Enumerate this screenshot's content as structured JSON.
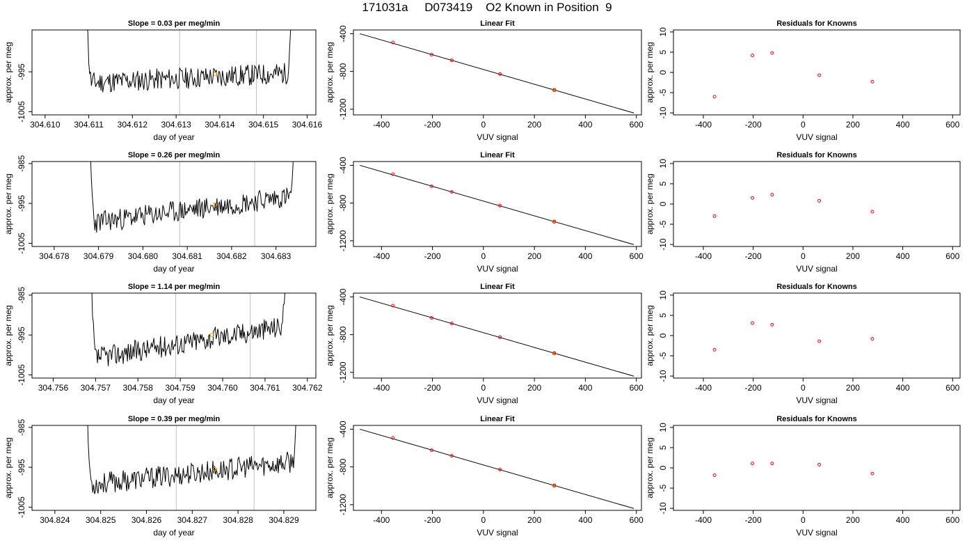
{
  "figure_title": "171031a     D073419    O2 Known in Position  9",
  "colors": {
    "line": "#000000",
    "vline": "#bebebe",
    "orange_point": "#ffa500",
    "red_point": "#ff0000"
  },
  "chart_data": [
    {
      "type": "line",
      "row": 0,
      "title": "Slope =  0.03  per meg/min",
      "xlabel": "day of year",
      "ylabel": "approx. per meg",
      "xlim": [
        304.6097,
        304.6162
      ],
      "ylim": [
        -1005.8,
        -984.5
      ],
      "xticks": [
        "304.610",
        "304.611",
        "304.612",
        "304.613",
        "304.614",
        "304.615",
        "304.616"
      ],
      "xtick_values": [
        304.61,
        304.611,
        304.612,
        304.613,
        304.614,
        304.615,
        304.616
      ],
      "yticks": [
        "-1005",
        "-995"
      ],
      "ytick_values": [
        -1005,
        -995
      ],
      "trace_start": 304.6109,
      "trace_end": 304.6157,
      "trace_level": -997.8,
      "trace_drift": 2.5,
      "vlines": [
        304.61308,
        304.61484
      ],
      "highlight_point": {
        "x": 304.6139,
        "y": -995.5
      },
      "seed": 11
    },
    {
      "type": "scatter_fit",
      "row": 0,
      "title": "Linear Fit",
      "xlabel": "VUV signal",
      "ylabel": "approx. per meg",
      "xlim": [
        -510,
        620
      ],
      "ylim": [
        -1260,
        -360
      ],
      "xticks": [
        "-400",
        "-200",
        "0",
        "200",
        "400",
        "600"
      ],
      "xtick_values": [
        -400,
        -200,
        0,
        200,
        400,
        600
      ],
      "yticks": [
        "-400",
        "-800",
        "-1200"
      ],
      "ytick_values": [
        -400,
        -800,
        -1200
      ],
      "fit_line": {
        "x": [
          -485,
          590
        ],
        "y": [
          -400,
          -1240
        ]
      },
      "points": {
        "x": [
          -355,
          -203,
          -124,
          65,
          278
        ],
        "y": [
          -493,
          -623,
          -682,
          -827,
          -997
        ]
      },
      "highlight_index": 4
    },
    {
      "type": "scatter",
      "row": 0,
      "title": "Residuals for Knowns",
      "xlabel": "VUV signal",
      "ylabel": "approx. per meg",
      "xlim": [
        -520,
        630
      ],
      "ylim": [
        -10.5,
        10.5
      ],
      "xticks": [
        "-400",
        "-200",
        "0",
        "200",
        "400",
        "600"
      ],
      "xtick_values": [
        -400,
        -200,
        0,
        200,
        400,
        600
      ],
      "yticks": [
        "-10",
        "-5",
        "0",
        "5",
        "10"
      ],
      "ytick_values": [
        -10,
        -5,
        0,
        5,
        10
      ],
      "points": {
        "x": [
          -355,
          -203,
          -124,
          65,
          278
        ],
        "y": [
          -6.0,
          4.2,
          4.8,
          -0.7,
          -2.3
        ]
      }
    },
    {
      "type": "line",
      "row": 1,
      "title": "Slope =  0.26  per meg/min",
      "xlabel": "day of year",
      "ylabel": "approx. per meg",
      "xlim": [
        304.6775,
        304.6839
      ],
      "ylim": [
        -1005.8,
        -984.5
      ],
      "xticks": [
        "304.678",
        "304.679",
        "304.680",
        "304.681",
        "304.682",
        "304.683"
      ],
      "xtick_values": [
        304.678,
        304.679,
        304.68,
        304.681,
        304.682,
        304.683
      ],
      "yticks": [
        "-1005",
        "-995",
        "-985"
      ],
      "ytick_values": [
        -1005,
        -995,
        -985
      ],
      "trace_start": 304.67876,
      "trace_end": 304.68348,
      "trace_level": -1000.0,
      "trace_drift": 7.0,
      "vlines": [
        304.68083,
        304.68252
      ],
      "highlight_point": {
        "x": 304.68162,
        "y": -995.3
      },
      "seed": 23
    },
    {
      "type": "scatter_fit",
      "row": 1,
      "title": "Linear Fit",
      "xlabel": "VUV signal",
      "ylabel": "approx. per meg",
      "xlim": [
        -510,
        620
      ],
      "ylim": [
        -1260,
        -360
      ],
      "xticks": [
        "-400",
        "-200",
        "0",
        "200",
        "400",
        "600"
      ],
      "xtick_values": [
        -400,
        -200,
        0,
        200,
        400,
        600
      ],
      "yticks": [
        "-400",
        "-800",
        "-1200"
      ],
      "ytick_values": [
        -400,
        -800,
        -1200
      ],
      "fit_line": {
        "x": [
          -485,
          590
        ],
        "y": [
          -400,
          -1240
        ]
      },
      "points": {
        "x": [
          -355,
          -203,
          -124,
          65,
          278
        ],
        "y": [
          -493,
          -623,
          -682,
          -827,
          -997
        ]
      },
      "highlight_index": 4
    },
    {
      "type": "scatter",
      "row": 1,
      "title": "Residuals for Knowns",
      "xlabel": "VUV signal",
      "ylabel": "approx. per meg",
      "xlim": [
        -520,
        630
      ],
      "ylim": [
        -10.5,
        10.5
      ],
      "xticks": [
        "-400",
        "-200",
        "0",
        "200",
        "400",
        "600"
      ],
      "xtick_values": [
        -400,
        -200,
        0,
        200,
        400,
        600
      ],
      "yticks": [
        "-10",
        "-5",
        "0",
        "5",
        "10"
      ],
      "ytick_values": [
        -10,
        -5,
        0,
        5,
        10
      ],
      "points": {
        "x": [
          -355,
          -203,
          -124,
          65,
          278
        ],
        "y": [
          -3.0,
          1.5,
          2.3,
          0.8,
          -1.9
        ]
      }
    },
    {
      "type": "line",
      "row": 2,
      "title": "Slope =  1.14  per meg/min",
      "xlabel": "day of year",
      "ylabel": "approx. per meg",
      "xlim": [
        304.7555,
        304.7622
      ],
      "ylim": [
        -1005.8,
        -984.5
      ],
      "xticks": [
        "304.756",
        "304.757",
        "304.758",
        "304.759",
        "304.760",
        "304.761",
        "304.762"
      ],
      "xtick_values": [
        304.756,
        304.757,
        304.758,
        304.759,
        304.76,
        304.761,
        304.762
      ],
      "yticks": [
        "-1005",
        "-995",
        "-985"
      ],
      "ytick_values": [
        -1005,
        -995,
        -985
      ],
      "trace_start": 304.75685,
      "trace_end": 304.76155,
      "trace_level": -1001.0,
      "trace_drift": 8.5,
      "vlines": [
        304.75889,
        304.76065
      ],
      "highlight_point": {
        "x": 304.75975,
        "y": -995.0
      },
      "seed": 37
    },
    {
      "type": "scatter_fit",
      "row": 2,
      "title": "Linear Fit",
      "xlabel": "VUV signal",
      "ylabel": "approx. per meg",
      "xlim": [
        -510,
        620
      ],
      "ylim": [
        -1260,
        -360
      ],
      "xticks": [
        "-400",
        "-200",
        "0",
        "200",
        "400",
        "600"
      ],
      "xtick_values": [
        -400,
        -200,
        0,
        200,
        400,
        600
      ],
      "yticks": [
        "-400",
        "-800",
        "-1200"
      ],
      "ytick_values": [
        -400,
        -800,
        -1200
      ],
      "fit_line": {
        "x": [
          -485,
          590
        ],
        "y": [
          -400,
          -1240
        ]
      },
      "points": {
        "x": [
          -355,
          -203,
          -124,
          65,
          278
        ],
        "y": [
          -493,
          -623,
          -682,
          -827,
          -997
        ]
      },
      "highlight_index": 4
    },
    {
      "type": "scatter",
      "row": 2,
      "title": "Residuals for Knowns",
      "xlabel": "VUV signal",
      "ylabel": "approx. per meg",
      "xlim": [
        -520,
        630
      ],
      "ylim": [
        -10.5,
        10.5
      ],
      "xticks": [
        "-400",
        "-200",
        "0",
        "200",
        "400",
        "600"
      ],
      "xtick_values": [
        -400,
        -200,
        0,
        200,
        400,
        600
      ],
      "yticks": [
        "-10",
        "-5",
        "0",
        "5",
        "10"
      ],
      "ytick_values": [
        -10,
        -5,
        0,
        5,
        10
      ],
      "points": {
        "x": [
          -355,
          -203,
          -124,
          65,
          278
        ],
        "y": [
          -3.5,
          3.1,
          2.7,
          -1.4,
          -0.8
        ]
      }
    },
    {
      "type": "line",
      "row": 3,
      "title": "Slope =  0.39  per meg/min",
      "xlabel": "day of year",
      "ylabel": "approx. per meg",
      "xlim": [
        304.8235,
        304.8297
      ],
      "ylim": [
        -1005.8,
        -984.5
      ],
      "xticks": [
        "304.824",
        "304.825",
        "304.826",
        "304.827",
        "304.828",
        "304.829"
      ],
      "xtick_values": [
        304.824,
        304.825,
        304.826,
        304.827,
        304.828,
        304.829
      ],
      "yticks": [
        "-1005",
        "-995",
        "-985"
      ],
      "ytick_values": [
        -1005,
        -995,
        -985
      ],
      "trace_start": 304.82465,
      "trace_end": 304.82935,
      "trace_level": -999.5,
      "trace_drift": 6.0,
      "vlines": [
        304.82665,
        304.82835
      ],
      "highlight_point": {
        "x": 304.8275,
        "y": -995.5
      },
      "seed": 53
    },
    {
      "type": "scatter_fit",
      "row": 3,
      "title": "Linear Fit",
      "xlabel": "VUV signal",
      "ylabel": "approx. per meg",
      "xlim": [
        -510,
        620
      ],
      "ylim": [
        -1260,
        -360
      ],
      "xticks": [
        "-400",
        "-200",
        "0",
        "200",
        "400",
        "600"
      ],
      "xtick_values": [
        -400,
        -200,
        0,
        200,
        400,
        600
      ],
      "yticks": [
        "-400",
        "-800",
        "-1200"
      ],
      "ytick_values": [
        -400,
        -800,
        -1200
      ],
      "fit_line": {
        "x": [
          -485,
          590
        ],
        "y": [
          -400,
          -1240
        ]
      },
      "points": {
        "x": [
          -355,
          -203,
          -124,
          65,
          278
        ],
        "y": [
          -493,
          -623,
          -682,
          -827,
          -997
        ]
      },
      "highlight_index": 4
    },
    {
      "type": "scatter",
      "row": 3,
      "title": "Residuals for Knowns",
      "xlabel": "VUV signal",
      "ylabel": "approx. per meg",
      "xlim": [
        -520,
        630
      ],
      "ylim": [
        -10.5,
        10.5
      ],
      "xticks": [
        "-400",
        "-200",
        "0",
        "200",
        "400",
        "600"
      ],
      "xtick_values": [
        -400,
        -200,
        0,
        200,
        400,
        600
      ],
      "yticks": [
        "-10",
        "-5",
        "0",
        "5",
        "10"
      ],
      "ytick_values": [
        -10,
        -5,
        0,
        5,
        10
      ],
      "points": {
        "x": [
          -355,
          -203,
          -124,
          65,
          278
        ],
        "y": [
          -1.8,
          1.1,
          1.1,
          0.8,
          -1.4
        ]
      }
    }
  ]
}
